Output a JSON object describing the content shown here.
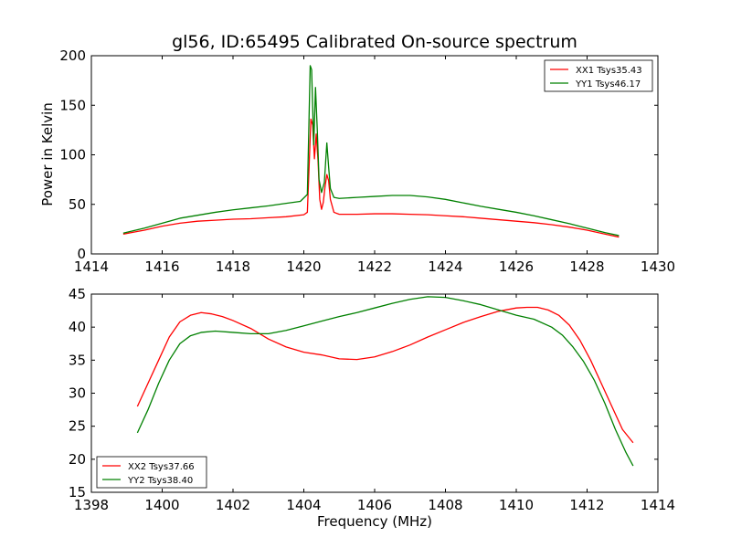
{
  "chart_data": [
    {
      "type": "line",
      "title": "gl56, ID:65495 Calibrated On-source spectrum",
      "xlabel": "",
      "ylabel": "Power in Kelvin",
      "xlim": [
        1414,
        1430
      ],
      "ylim": [
        0,
        200
      ],
      "xticks": [
        1414,
        1416,
        1418,
        1420,
        1422,
        1424,
        1426,
        1428,
        1430
      ],
      "yticks": [
        0,
        50,
        100,
        150,
        200
      ],
      "legend_position": "top-right",
      "series": [
        {
          "name": "XX1 Tsys35.43",
          "color": "#ff0000",
          "x": [
            1414.9,
            1415.5,
            1416.0,
            1416.5,
            1417.0,
            1417.5,
            1418.0,
            1418.5,
            1419.0,
            1419.5,
            1420.0,
            1420.1,
            1420.2,
            1420.25,
            1420.3,
            1420.35,
            1420.4,
            1420.45,
            1420.5,
            1420.55,
            1420.6,
            1420.65,
            1420.7,
            1420.75,
            1420.85,
            1421.0,
            1421.5,
            1422.0,
            1422.5,
            1423.0,
            1423.5,
            1424.0,
            1424.5,
            1425.0,
            1425.5,
            1426.0,
            1426.5,
            1427.0,
            1427.5,
            1428.0,
            1428.5,
            1428.9
          ],
          "y": [
            20,
            24,
            28,
            31,
            33,
            34,
            35,
            35.5,
            36.5,
            37.5,
            39.5,
            42,
            136,
            130,
            96,
            121,
            95,
            55,
            45,
            52,
            68,
            80,
            74,
            55,
            42,
            40,
            40,
            40.5,
            40.5,
            40,
            39.5,
            38.5,
            37.5,
            36,
            34.5,
            33,
            31.5,
            29.5,
            27,
            24,
            20,
            17
          ]
        },
        {
          "name": "YY1 Tsys46.17",
          "color": "#008000",
          "x": [
            1414.9,
            1415.5,
            1416.0,
            1416.5,
            1417.0,
            1417.5,
            1418.0,
            1418.5,
            1419.0,
            1419.5,
            1419.9,
            1420.1,
            1420.18,
            1420.22,
            1420.28,
            1420.33,
            1420.38,
            1420.43,
            1420.5,
            1420.58,
            1420.65,
            1420.7,
            1420.75,
            1420.85,
            1421.0,
            1421.5,
            1422.0,
            1422.5,
            1423.0,
            1423.5,
            1424.0,
            1424.5,
            1425.0,
            1425.5,
            1426.0,
            1426.5,
            1427.0,
            1427.5,
            1428.0,
            1428.5,
            1428.9
          ],
          "y": [
            21,
            26,
            31,
            36,
            39,
            42,
            44.5,
            46.5,
            48.5,
            51,
            53,
            60,
            190,
            186,
            110,
            168,
            125,
            75,
            62,
            72,
            112,
            88,
            66,
            57,
            56,
            57,
            58,
            59,
            59,
            57.5,
            55,
            51.5,
            48,
            45,
            42,
            38.5,
            34.5,
            30.5,
            26,
            21.5,
            18.5
          ]
        }
      ]
    },
    {
      "type": "line",
      "title": "",
      "xlabel": "Frequency (MHz)",
      "ylabel": "",
      "xlim": [
        1398,
        1414
      ],
      "ylim": [
        15,
        45
      ],
      "xticks": [
        1398,
        1400,
        1402,
        1404,
        1406,
        1408,
        1410,
        1412,
        1414
      ],
      "yticks": [
        15,
        20,
        25,
        30,
        35,
        40,
        45
      ],
      "legend_position": "bottom-left",
      "series": [
        {
          "name": "XX2 Tsys37.66",
          "color": "#ff0000",
          "x": [
            1399.3,
            1399.6,
            1399.9,
            1400.2,
            1400.5,
            1400.8,
            1401.1,
            1401.4,
            1401.7,
            1402.0,
            1402.5,
            1403.0,
            1403.5,
            1404.0,
            1404.5,
            1405.0,
            1405.5,
            1406.0,
            1406.5,
            1407.0,
            1407.5,
            1408.0,
            1408.5,
            1409.0,
            1409.5,
            1410.0,
            1410.3,
            1410.6,
            1410.9,
            1411.2,
            1411.5,
            1411.8,
            1412.1,
            1412.4,
            1412.7,
            1413.0,
            1413.3
          ],
          "y": [
            28,
            31.5,
            35,
            38.5,
            40.8,
            41.8,
            42.2,
            42,
            41.6,
            41,
            39.8,
            38.2,
            37,
            36.2,
            35.8,
            35.2,
            35.1,
            35.5,
            36.3,
            37.3,
            38.5,
            39.6,
            40.7,
            41.6,
            42.4,
            42.9,
            43,
            43,
            42.6,
            41.8,
            40.3,
            38,
            35,
            31.5,
            28,
            24.5,
            22.5
          ]
        },
        {
          "name": "YY2 Tsys38.40",
          "color": "#008000",
          "x": [
            1399.3,
            1399.6,
            1399.9,
            1400.2,
            1400.5,
            1400.8,
            1401.1,
            1401.5,
            1402.0,
            1402.5,
            1403.0,
            1403.5,
            1404.0,
            1404.5,
            1405.0,
            1405.5,
            1406.0,
            1406.5,
            1407.0,
            1407.5,
            1408.0,
            1408.5,
            1409.0,
            1409.5,
            1410.0,
            1410.5,
            1411.0,
            1411.3,
            1411.6,
            1411.9,
            1412.2,
            1412.5,
            1412.8,
            1413.1,
            1413.3
          ],
          "y": [
            24,
            27.5,
            31.5,
            35,
            37.5,
            38.7,
            39.2,
            39.4,
            39.2,
            39,
            39,
            39.5,
            40.2,
            40.9,
            41.6,
            42.2,
            42.9,
            43.6,
            44.2,
            44.6,
            44.5,
            44,
            43.4,
            42.6,
            41.8,
            41.2,
            40,
            38.8,
            37,
            34.8,
            32,
            28.5,
            24.5,
            21,
            19
          ]
        }
      ]
    }
  ]
}
